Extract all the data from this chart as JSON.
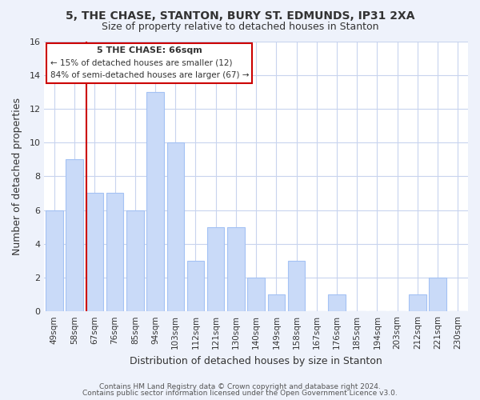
{
  "title1": "5, THE CHASE, STANTON, BURY ST. EDMUNDS, IP31 2XA",
  "title2": "Size of property relative to detached houses in Stanton",
  "xlabel": "Distribution of detached houses by size in Stanton",
  "ylabel": "Number of detached properties",
  "bar_labels": [
    "49sqm",
    "58sqm",
    "67sqm",
    "76sqm",
    "85sqm",
    "94sqm",
    "103sqm",
    "112sqm",
    "121sqm",
    "130sqm",
    "140sqm",
    "149sqm",
    "158sqm",
    "167sqm",
    "176sqm",
    "185sqm",
    "194sqm",
    "203sqm",
    "212sqm",
    "221sqm",
    "230sqm"
  ],
  "bar_values": [
    6,
    9,
    7,
    7,
    6,
    13,
    10,
    3,
    5,
    5,
    2,
    1,
    3,
    0,
    1,
    0,
    0,
    0,
    1,
    2,
    0
  ],
  "bar_color": "#c9daf8",
  "bar_edge_color": "#a4c2f4",
  "ylim": [
    0,
    16
  ],
  "yticks": [
    0,
    2,
    4,
    6,
    8,
    10,
    12,
    14,
    16
  ],
  "property_line_color": "#cc0000",
  "annotation_title": "5 THE CHASE: 66sqm",
  "annotation_line1": "← 15% of detached houses are smaller (12)",
  "annotation_line2": "84% of semi-detached houses are larger (67) →",
  "annotation_box_facecolor": "#ffffff",
  "annotation_box_edgecolor": "#cc0000",
  "footer1": "Contains HM Land Registry data © Crown copyright and database right 2024.",
  "footer2": "Contains public sector information licensed under the Open Government Licence v3.0.",
  "background_color": "#eef2fb",
  "plot_background": "#ffffff",
  "grid_color": "#c8d4ee"
}
